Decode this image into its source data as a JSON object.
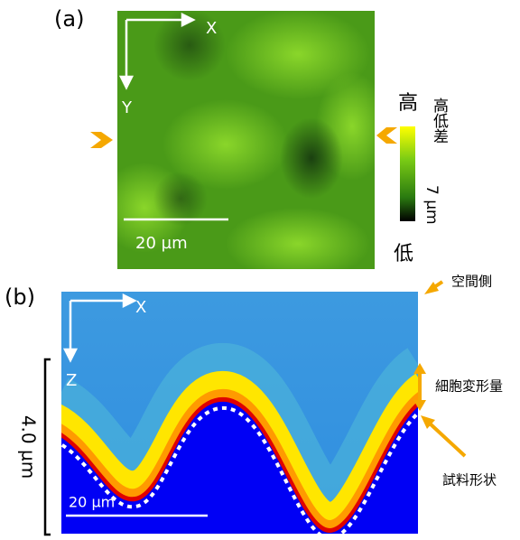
{
  "panel_a": {
    "label": "(a)",
    "axis_x": "X",
    "axis_y": "Y",
    "scale_bar": "20 µm",
    "colorbar": {
      "high": "高",
      "low": "低",
      "title": "高低差",
      "range": "7 µm"
    }
  },
  "panel_b": {
    "label": "(b)",
    "axis_x": "X",
    "axis_z": "Z",
    "scale_bar": "20 µm",
    "height": "4.0 µm",
    "annotations": {
      "space_side": "空間側",
      "deformation": "細胞変形量",
      "sample_shape": "試料形状"
    }
  }
}
